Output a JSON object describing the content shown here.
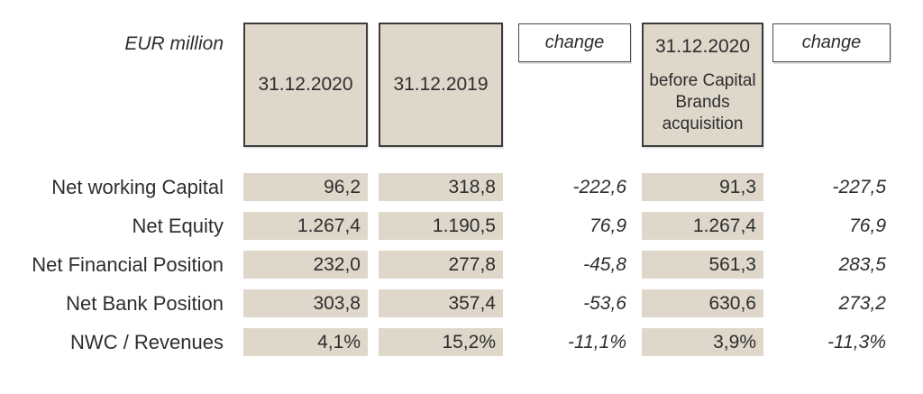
{
  "table": {
    "unit_label": "EUR million",
    "header": {
      "col_2020": "31.12.2020",
      "col_2019": "31.12.2019",
      "change_1": "change",
      "col_2020_before_date": "31.12.2020",
      "col_2020_before_note": "before Capital Brands acquisition",
      "change_2": "change"
    },
    "rows": [
      {
        "label": "Net working Capital",
        "values": [
          "96,2",
          "318,8",
          "-222,6",
          "91,3",
          "-227,5"
        ]
      },
      {
        "label": "Net Equity",
        "values": [
          "1.267,4",
          "1.190,5",
          "76,9",
          "1.267,4",
          "76,9"
        ]
      },
      {
        "label": "Net Financial Position",
        "values": [
          "232,0",
          "277,8",
          "-45,8",
          "561,3",
          "283,5"
        ]
      },
      {
        "label": "Net Bank Position",
        "values": [
          "303,8",
          "357,4",
          "-53,6",
          "630,6",
          "273,2"
        ]
      },
      {
        "label": "NWC / Revenues",
        "values": [
          "4,1%",
          "15,2%",
          "-11,1%",
          "3,9%",
          "-11,3%"
        ]
      }
    ]
  },
  "colors": {
    "cell_background": "#ded7ca",
    "highlight_box_border": "#3d3d3d",
    "change_box_border": "#4a4a4a",
    "text": "#2e2e2e"
  }
}
